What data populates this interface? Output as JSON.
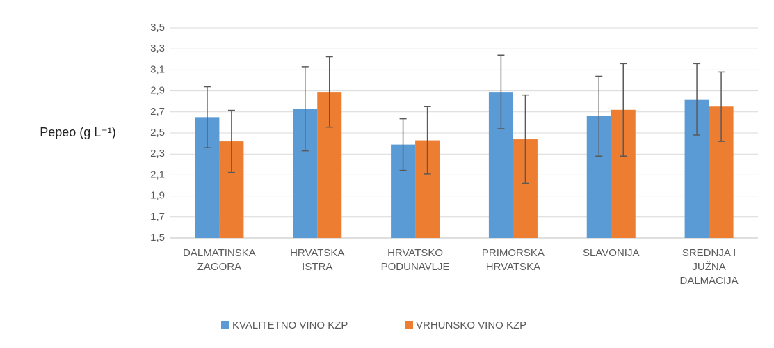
{
  "chart_data": {
    "type": "bar",
    "y_label": "Pepeo (g L⁻¹)",
    "categories": [
      "DALMATINSKA\nZAGORA",
      "HRVATSKA\nISTRA",
      "HRVATSKO\nPODUNAVLJE",
      "PRIMORSKA\nHRVATSKA",
      "SLAVONIJA",
      "SREDNJA I\nJUŽNA\nDALMACIJA"
    ],
    "series": [
      {
        "name": "KVALITETNO VINO KZP",
        "color": "#5b9bd5",
        "values": [
          2.65,
          2.73,
          2.39,
          2.89,
          2.66,
          2.82
        ],
        "errors": [
          0.29,
          0.4,
          0.245,
          0.35,
          0.38,
          0.34
        ]
      },
      {
        "name": "VRHUNSKO VINO KZP",
        "color": "#ed7d31",
        "values": [
          2.42,
          2.89,
          2.43,
          2.44,
          2.72,
          2.75
        ],
        "errors": [
          0.295,
          0.335,
          0.32,
          0.42,
          0.44,
          0.33
        ]
      }
    ],
    "ylim": [
      1.5,
      3.5
    ],
    "yticks": [
      {
        "value": 1.5,
        "label": "1,5"
      },
      {
        "value": 1.7,
        "label": "1,7"
      },
      {
        "value": 1.9,
        "label": "1,9"
      },
      {
        "value": 2.1,
        "label": "2,1"
      },
      {
        "value": 2.3,
        "label": "2,3"
      },
      {
        "value": 2.5,
        "label": "2,5"
      },
      {
        "value": 2.7,
        "label": "2,7"
      },
      {
        "value": 2.9,
        "label": "2,9"
      },
      {
        "value": 3.1,
        "label": "3,1"
      },
      {
        "value": 3.3,
        "label": "3,3"
      },
      {
        "value": 3.5,
        "label": "3,5"
      }
    ],
    "grid": true,
    "legend": "bottom"
  }
}
